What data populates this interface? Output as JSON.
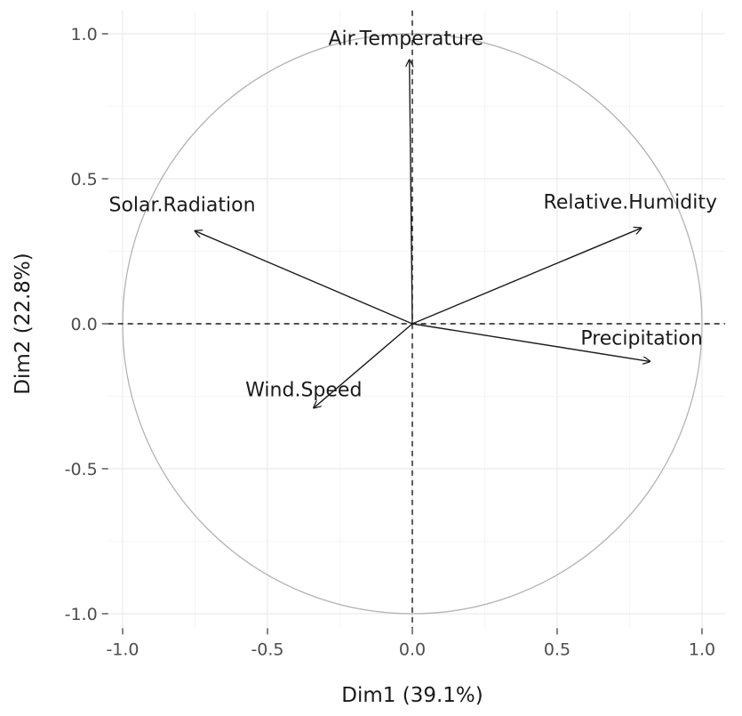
{
  "chart_data": {
    "type": "scatter",
    "subtype": "pca-correlation-circle",
    "title": "",
    "xlabel": "Dim1 (39.1%)",
    "ylabel": "Dim2 (22.8%)",
    "xlim": [
      -1.05,
      1.08
    ],
    "ylim": [
      -1.05,
      1.08
    ],
    "xticks": [
      -1.0,
      -0.5,
      0.0,
      0.5,
      1.0
    ],
    "xtick_labels": [
      "-1.0",
      "-0.5",
      "0.0",
      "0.5",
      "1.0"
    ],
    "yticks": [
      -1.0,
      -0.5,
      0.0,
      0.5,
      1.0
    ],
    "ytick_labels": [
      "-1.0",
      "-0.5",
      "0.0",
      "0.5",
      "1.0"
    ],
    "grid": true,
    "unit_circle": true,
    "reference_lines": {
      "x": 0,
      "y": 0,
      "style": "dashed"
    },
    "variables": [
      {
        "name": "Air.Temperature",
        "x": -0.01,
        "y": 0.91
      },
      {
        "name": "Solar.Radiation",
        "x": -0.75,
        "y": 0.32
      },
      {
        "name": "Relative.Humidity",
        "x": 0.79,
        "y": 0.33
      },
      {
        "name": "Precipitation",
        "x": 0.82,
        "y": -0.13
      },
      {
        "name": "Wind.Speed",
        "x": -0.34,
        "y": -0.29
      }
    ],
    "colors": {
      "arrows": "#1a1a1a",
      "circle": "#b3b3b3",
      "grid_major": "#ebebeb",
      "grid_minor": "#f5f5f5",
      "background": "#ffffff"
    }
  }
}
